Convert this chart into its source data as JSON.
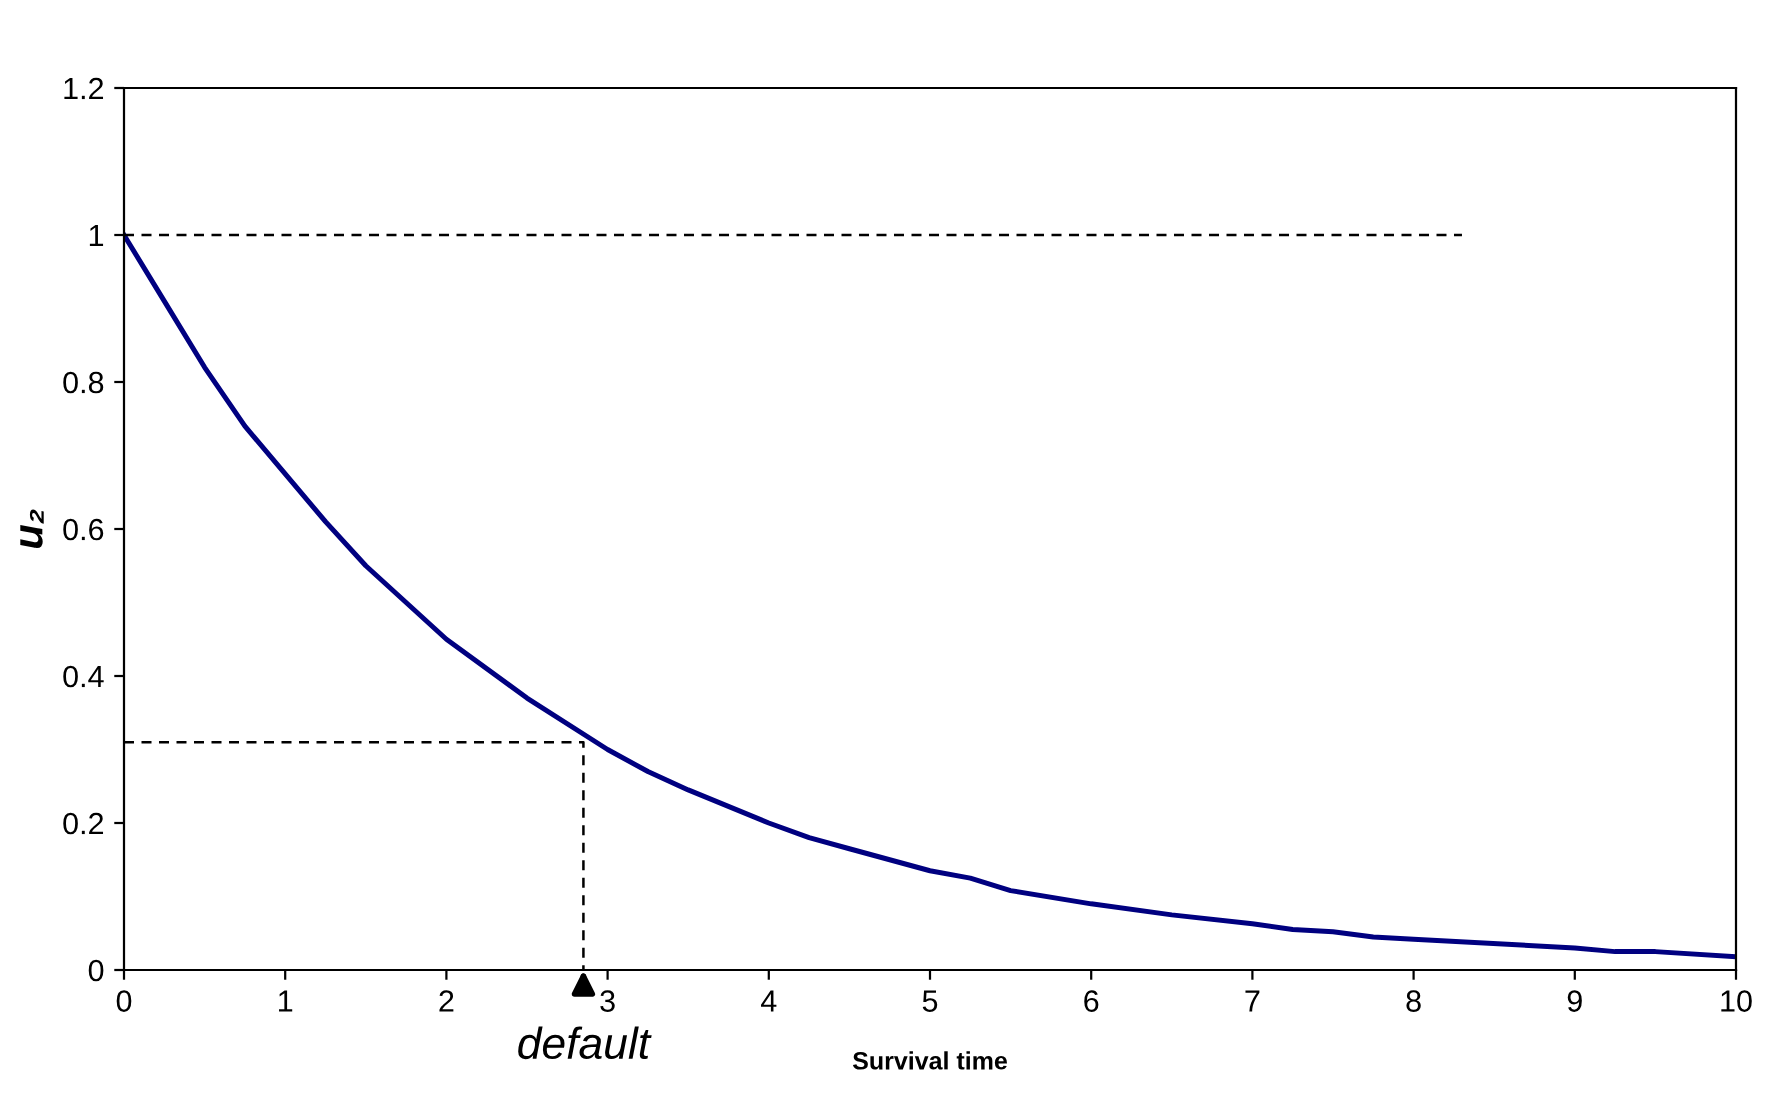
{
  "chart_data": {
    "type": "line",
    "xlabel": "Survival time",
    "ylabel": "u₂",
    "xlim": [
      0,
      10
    ],
    "ylim": [
      0,
      1.2
    ],
    "xticks": [
      0,
      1,
      2,
      3,
      4,
      5,
      6,
      7,
      8,
      9,
      10
    ],
    "yticks": [
      0,
      0.2,
      0.4,
      0.6,
      0.8,
      1,
      1.2
    ],
    "grid": false,
    "legend": false,
    "marker": "none",
    "series": [
      {
        "color": "#000080",
        "line_style": "solid",
        "x": [
          0,
          0.25,
          0.5,
          0.75,
          1,
          1.25,
          1.5,
          2,
          2.5,
          3,
          3.25,
          3.5,
          4,
          4.25,
          4.5,
          5,
          5.25,
          5.5,
          6,
          6.5,
          7,
          7.25,
          7.5,
          7.75,
          8,
          9,
          9.25,
          9.5,
          10
        ],
        "values": [
          1,
          0.91,
          0.82,
          0.74,
          0.675,
          0.61,
          0.55,
          0.45,
          0.37,
          0.3,
          0.27,
          0.245,
          0.2,
          0.18,
          0.165,
          0.135,
          0.125,
          0.108,
          0.09,
          0.075,
          0.063,
          0.055,
          0.052,
          0.045,
          0.042,
          0.03,
          0.025,
          0.025,
          0.018
        ]
      },
      {
        "color": "#000000",
        "line_style": "dashed",
        "x": [
          0,
          8.3
        ],
        "values": [
          1,
          1
        ]
      },
      {
        "color": "#000000",
        "line_style": "dashed",
        "x": [
          0,
          2.85,
          2.85
        ],
        "values": [
          0.31,
          0.31,
          0
        ]
      }
    ],
    "annotations": [
      {
        "text": "default",
        "x": 2.85,
        "y": 0
      }
    ]
  }
}
